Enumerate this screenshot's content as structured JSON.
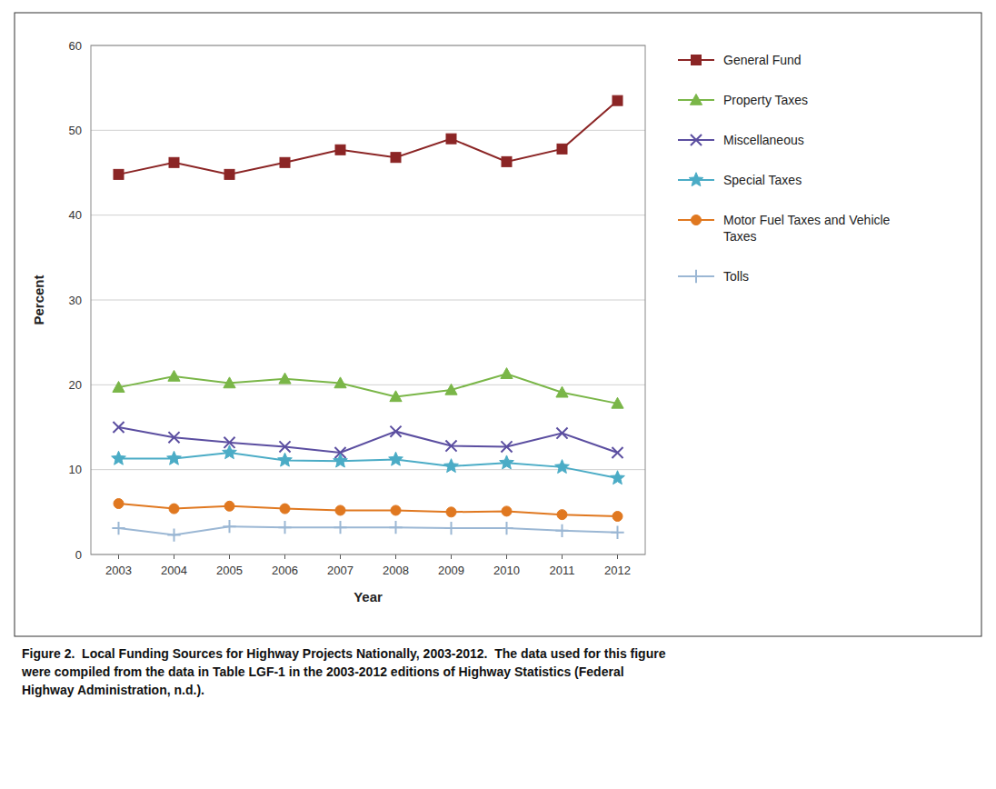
{
  "chart_data": {
    "type": "line",
    "x": [
      2003,
      2004,
      2005,
      2006,
      2007,
      2008,
      2009,
      2010,
      2011,
      2012
    ],
    "xlim": [
      2002.5,
      2012.5
    ],
    "xticks": [
      2003,
      2004,
      2005,
      2006,
      2007,
      2008,
      2009,
      2010,
      2011,
      2012
    ],
    "ylim": [
      0,
      60
    ],
    "yticks": [
      0,
      10,
      20,
      30,
      40,
      50,
      60
    ],
    "xlabel": "Year",
    "ylabel": "Percent",
    "grid": true,
    "legend": "right",
    "caption": "Figure 2.  Local Funding Sources for Highway Projects Nationally, 2003-2012.  The data used for this figure\nwere compiled from the data in Table LGF-1 in the 2003-2012 editions of Highway Statistics (Federal\nHighway Administration, n.d.).",
    "series": [
      {
        "name": "General Fund",
        "color": "#8B2525",
        "marker": "square",
        "line_style": "solid",
        "values": [
          44.8,
          46.2,
          44.8,
          46.2,
          47.7,
          46.8,
          49.0,
          46.3,
          47.8,
          53.5
        ]
      },
      {
        "name": "Property Taxes",
        "color": "#7AB648",
        "marker": "triangle",
        "line_style": "solid",
        "values": [
          19.7,
          21.0,
          20.2,
          20.7,
          20.2,
          18.6,
          19.4,
          21.3,
          19.1,
          17.8
        ]
      },
      {
        "name": "Miscellaneous",
        "color": "#5B4EA0",
        "marker": "x",
        "line_style": "solid",
        "values": [
          15.0,
          13.8,
          13.2,
          12.7,
          12.0,
          14.5,
          12.8,
          12.7,
          14.3,
          12.0
        ]
      },
      {
        "name": "Special Taxes",
        "color": "#4BACC6",
        "marker": "star",
        "line_style": "solid",
        "values": [
          11.3,
          11.3,
          12.0,
          11.1,
          11.0,
          11.2,
          10.4,
          10.8,
          10.3,
          9.0
        ]
      },
      {
        "name": "Motor Fuel Taxes and Vehicle\nTaxes",
        "color": "#E07820",
        "marker": "circle",
        "line_style": "solid",
        "values": [
          6.0,
          5.4,
          5.7,
          5.4,
          5.2,
          5.2,
          5.0,
          5.1,
          4.7,
          4.5
        ]
      },
      {
        "name": "Tolls",
        "color": "#9BB7D4",
        "marker": "plus",
        "line_style": "solid",
        "values": [
          3.1,
          2.3,
          3.3,
          3.2,
          3.2,
          3.2,
          3.1,
          3.1,
          2.8,
          2.6
        ]
      }
    ]
  }
}
